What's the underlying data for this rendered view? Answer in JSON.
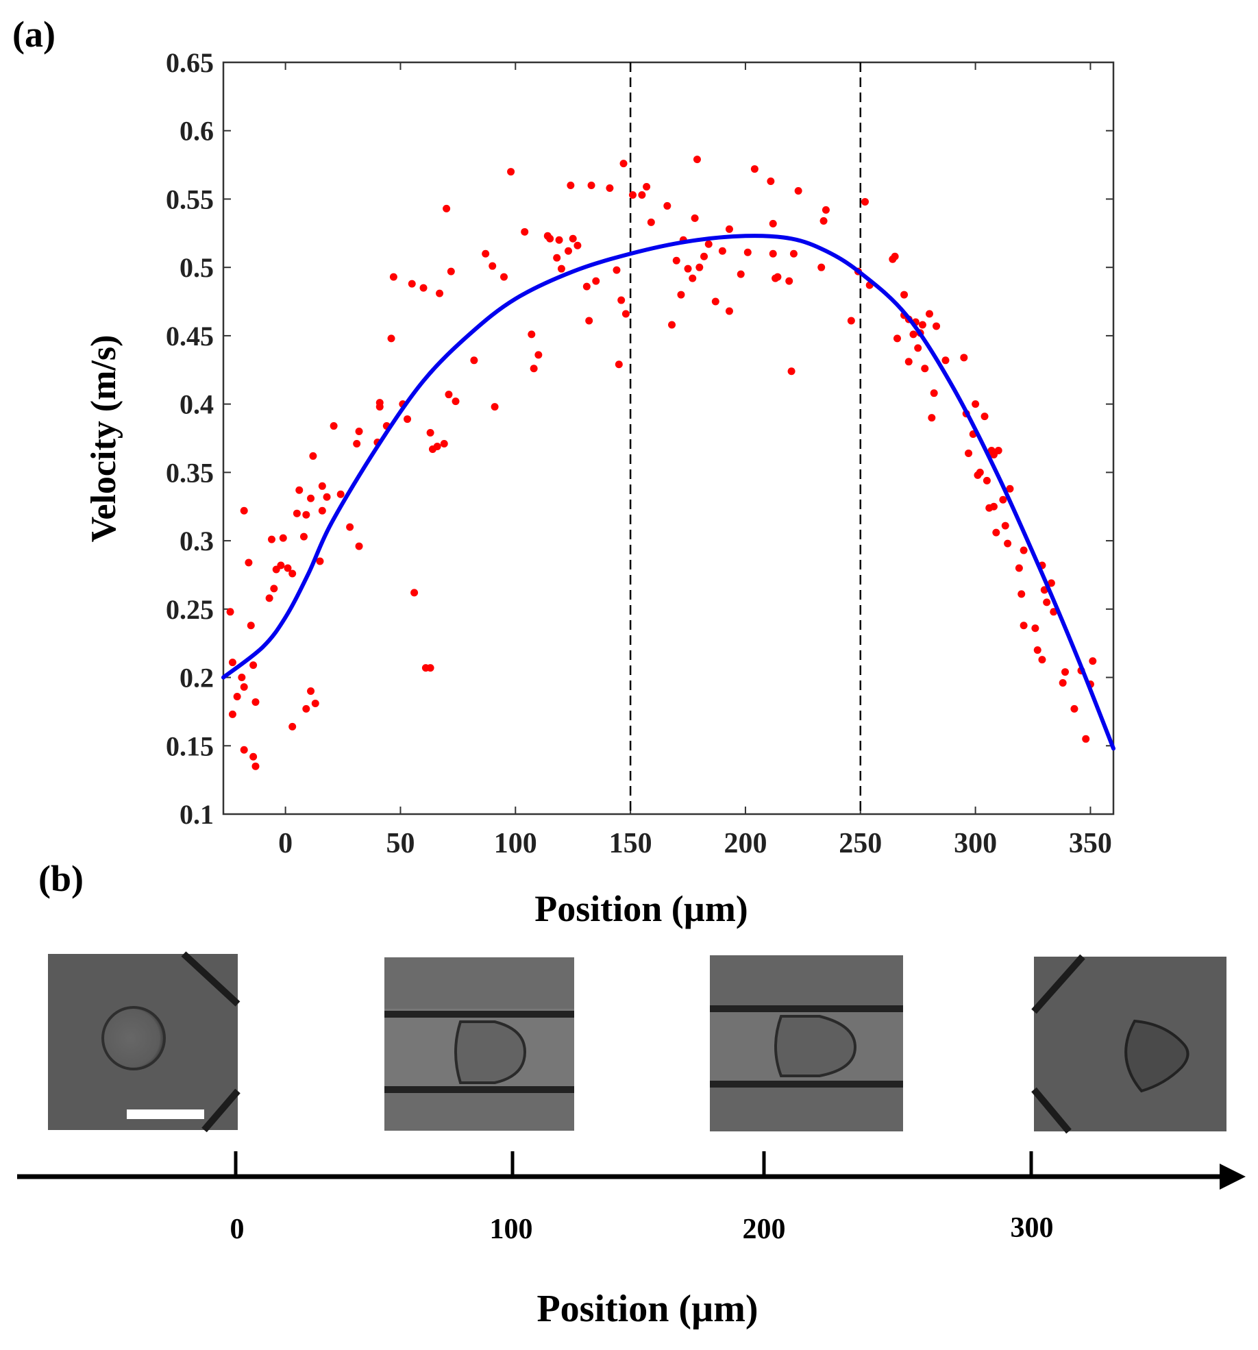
{
  "panel_a_label": "(a)",
  "panel_b_label": "(b)",
  "chart_data": {
    "type": "scatter",
    "xlabel": "Position (µm)",
    "ylabel": "Velocity (m/s)",
    "xlim": [
      -27,
      360
    ],
    "ylim": [
      0.1,
      0.65
    ],
    "xticks": [
      0,
      50,
      100,
      150,
      200,
      250,
      300,
      350
    ],
    "yticks": [
      0.1,
      0.15,
      0.2,
      0.25,
      0.3,
      0.35,
      0.4,
      0.45,
      0.5,
      0.55,
      0.6,
      0.65
    ],
    "ytick_labels": [
      "0.1",
      "0.15",
      "0.2",
      "0.25",
      "0.3",
      "0.35",
      "0.4",
      "0.45",
      "0.5",
      "0.55",
      "0.6",
      "0.65"
    ],
    "vlines": [
      150,
      250
    ],
    "colors": {
      "points": "#ff0000",
      "fit": "#0000ee",
      "vlines": "#000000"
    },
    "series": [
      {
        "name": "measured",
        "kind": "scatter",
        "points": [
          [
            -24,
            0.248
          ],
          [
            -23,
            0.211
          ],
          [
            -23,
            0.173
          ],
          [
            -21,
            0.186
          ],
          [
            -19,
            0.2
          ],
          [
            -18,
            0.193
          ],
          [
            -18,
            0.322
          ],
          [
            -18,
            0.147
          ],
          [
            -16,
            0.284
          ],
          [
            -15,
            0.238
          ],
          [
            -14,
            0.209
          ],
          [
            -14,
            0.142
          ],
          [
            -13,
            0.135
          ],
          [
            -13,
            0.182
          ],
          [
            -7,
            0.258
          ],
          [
            -6,
            0.301
          ],
          [
            -5,
            0.265
          ],
          [
            -4,
            0.279
          ],
          [
            -2,
            0.282
          ],
          [
            -1,
            0.302
          ],
          [
            1,
            0.28
          ],
          [
            3,
            0.276
          ],
          [
            3,
            0.164
          ],
          [
            5,
            0.32
          ],
          [
            6,
            0.337
          ],
          [
            8,
            0.303
          ],
          [
            9,
            0.319
          ],
          [
            9,
            0.177
          ],
          [
            11,
            0.331
          ],
          [
            11,
            0.19
          ],
          [
            12,
            0.362
          ],
          [
            13,
            0.181
          ],
          [
            15,
            0.285
          ],
          [
            16,
            0.34
          ],
          [
            16,
            0.322
          ],
          [
            18,
            0.332
          ],
          [
            21,
            0.384
          ],
          [
            24,
            0.334
          ],
          [
            28,
            0.31
          ],
          [
            31,
            0.371
          ],
          [
            32,
            0.296
          ],
          [
            32,
            0.38
          ],
          [
            40,
            0.372
          ],
          [
            41,
            0.401
          ],
          [
            41,
            0.398
          ],
          [
            44,
            0.384
          ],
          [
            46,
            0.448
          ],
          [
            47,
            0.493
          ],
          [
            51,
            0.4
          ],
          [
            53,
            0.389
          ],
          [
            55,
            0.488
          ],
          [
            56,
            0.262
          ],
          [
            60,
            0.485
          ],
          [
            61,
            0.207
          ],
          [
            63,
            0.207
          ],
          [
            63,
            0.379
          ],
          [
            64,
            0.367
          ],
          [
            66,
            0.369
          ],
          [
            67,
            0.481
          ],
          [
            69,
            0.371
          ],
          [
            70,
            0.543
          ],
          [
            71,
            0.407
          ],
          [
            72,
            0.497
          ],
          [
            74,
            0.402
          ],
          [
            82,
            0.432
          ],
          [
            87,
            0.51
          ],
          [
            90,
            0.501
          ],
          [
            91,
            0.398
          ],
          [
            95,
            0.493
          ],
          [
            98,
            0.57
          ],
          [
            104,
            0.526
          ],
          [
            107,
            0.451
          ],
          [
            108,
            0.426
          ],
          [
            110,
            0.436
          ],
          [
            114,
            0.523
          ],
          [
            115,
            0.521
          ],
          [
            118,
            0.507
          ],
          [
            119,
            0.52
          ],
          [
            120,
            0.499
          ],
          [
            123,
            0.512
          ],
          [
            124,
            0.56
          ],
          [
            125,
            0.521
          ],
          [
            127,
            0.516
          ],
          [
            131,
            0.486
          ],
          [
            132,
            0.461
          ],
          [
            133,
            0.56
          ],
          [
            135,
            0.49
          ],
          [
            141,
            0.558
          ],
          [
            144,
            0.498
          ],
          [
            145,
            0.429
          ],
          [
            146,
            0.476
          ],
          [
            147,
            0.576
          ],
          [
            148,
            0.466
          ],
          [
            151,
            0.553
          ],
          [
            155,
            0.553
          ],
          [
            157,
            0.559
          ],
          [
            159,
            0.533
          ],
          [
            166,
            0.545
          ],
          [
            168,
            0.458
          ],
          [
            170,
            0.505
          ],
          [
            172,
            0.48
          ],
          [
            173,
            0.52
          ],
          [
            175,
            0.499
          ],
          [
            177,
            0.492
          ],
          [
            178,
            0.536
          ],
          [
            179,
            0.579
          ],
          [
            180,
            0.5
          ],
          [
            182,
            0.508
          ],
          [
            184,
            0.517
          ],
          [
            187,
            0.475
          ],
          [
            190,
            0.512
          ],
          [
            193,
            0.468
          ],
          [
            193,
            0.528
          ],
          [
            198,
            0.495
          ],
          [
            201,
            0.511
          ],
          [
            204,
            0.572
          ],
          [
            211,
            0.563
          ],
          [
            212,
            0.51
          ],
          [
            212,
            0.532
          ],
          [
            213,
            0.492
          ],
          [
            214,
            0.493
          ],
          [
            219,
            0.49
          ],
          [
            220,
            0.424
          ],
          [
            221,
            0.51
          ],
          [
            223,
            0.556
          ],
          [
            233,
            0.5
          ],
          [
            234,
            0.534
          ],
          [
            235,
            0.542
          ],
          [
            246,
            0.461
          ],
          [
            249,
            0.497
          ],
          [
            252,
            0.548
          ],
          [
            254,
            0.487
          ],
          [
            264,
            0.506
          ],
          [
            265,
            0.508
          ],
          [
            266,
            0.448
          ],
          [
            269,
            0.48
          ],
          [
            269,
            0.465
          ],
          [
            271,
            0.431
          ],
          [
            271,
            0.462
          ],
          [
            273,
            0.451
          ],
          [
            274,
            0.46
          ],
          [
            275,
            0.441
          ],
          [
            276,
            0.452
          ],
          [
            277,
            0.458
          ],
          [
            278,
            0.426
          ],
          [
            280,
            0.466
          ],
          [
            281,
            0.39
          ],
          [
            282,
            0.408
          ],
          [
            283,
            0.457
          ],
          [
            287,
            0.432
          ],
          [
            295,
            0.434
          ],
          [
            296,
            0.393
          ],
          [
            297,
            0.364
          ],
          [
            299,
            0.378
          ],
          [
            300,
            0.4
          ],
          [
            301,
            0.348
          ],
          [
            302,
            0.35
          ],
          [
            304,
            0.391
          ],
          [
            305,
            0.344
          ],
          [
            306,
            0.324
          ],
          [
            307,
            0.366
          ],
          [
            308,
            0.363
          ],
          [
            308,
            0.325
          ],
          [
            309,
            0.306
          ],
          [
            310,
            0.366
          ],
          [
            312,
            0.33
          ],
          [
            313,
            0.311
          ],
          [
            314,
            0.298
          ],
          [
            315,
            0.338
          ],
          [
            319,
            0.28
          ],
          [
            320,
            0.261
          ],
          [
            321,
            0.293
          ],
          [
            321,
            0.238
          ],
          [
            326,
            0.236
          ],
          [
            327,
            0.22
          ],
          [
            329,
            0.213
          ],
          [
            329,
            0.282
          ],
          [
            330,
            0.264
          ],
          [
            331,
            0.255
          ],
          [
            333,
            0.269
          ],
          [
            334,
            0.248
          ],
          [
            338,
            0.196
          ],
          [
            339,
            0.204
          ],
          [
            343,
            0.177
          ],
          [
            346,
            0.205
          ],
          [
            348,
            0.155
          ],
          [
            350,
            0.195
          ],
          [
            351,
            0.212
          ]
        ]
      },
      {
        "name": "fit",
        "kind": "line",
        "points": [
          [
            -27,
            0.2
          ],
          [
            -10,
            0.222
          ],
          [
            0,
            0.244
          ],
          [
            10,
            0.276
          ],
          [
            20,
            0.313
          ],
          [
            40,
            0.369
          ],
          [
            60,
            0.417
          ],
          [
            80,
            0.451
          ],
          [
            100,
            0.477
          ],
          [
            125,
            0.497
          ],
          [
            150,
            0.51
          ],
          [
            175,
            0.519
          ],
          [
            200,
            0.523
          ],
          [
            220,
            0.521
          ],
          [
            235,
            0.512
          ],
          [
            250,
            0.496
          ],
          [
            270,
            0.465
          ],
          [
            290,
            0.413
          ],
          [
            310,
            0.347
          ],
          [
            330,
            0.272
          ],
          [
            345,
            0.212
          ],
          [
            360,
            0.148
          ]
        ]
      }
    ]
  },
  "images": [
    {
      "name": "channel-entrance",
      "has_scale_bar": true
    },
    {
      "name": "channel-100"
    },
    {
      "name": "channel-200"
    },
    {
      "name": "channel-exit"
    }
  ],
  "position_axis": {
    "label": "Position (µm)",
    "ticks": [
      "0",
      "100",
      "200",
      "300"
    ]
  }
}
